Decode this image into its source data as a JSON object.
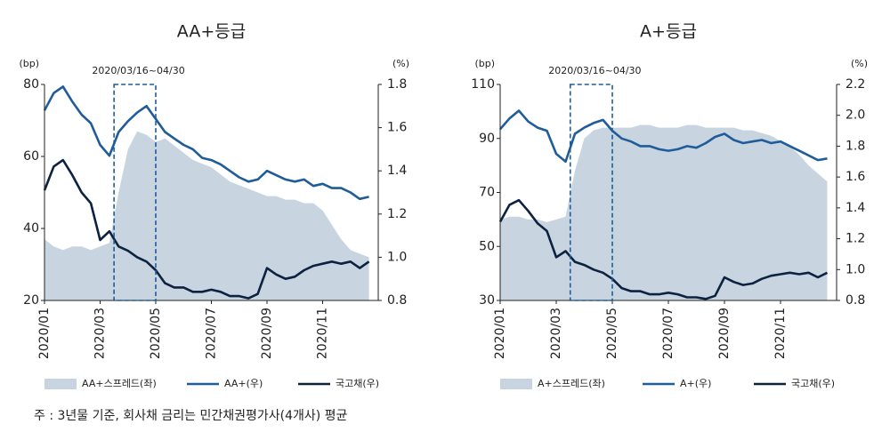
{
  "chart_data": [
    {
      "type": "line",
      "title": "AA+등급",
      "y_unit": "(bp)",
      "y2_unit": "(%)",
      "annotation": "2020/03/16~04/30",
      "categories": [
        "2020/01",
        null,
        null,
        null,
        null,
        null,
        "2020/03",
        null,
        null,
        null,
        null,
        null,
        "2020/05",
        null,
        null,
        null,
        null,
        null,
        "2020/07",
        null,
        null,
        null,
        null,
        null,
        "2020/09",
        null,
        null,
        null,
        null,
        null,
        "2020/11",
        null,
        null,
        null,
        null,
        null
      ],
      "ylim": [
        20,
        80
      ],
      "yticks": [
        20,
        40,
        60,
        80
      ],
      "y2lim": [
        0.8,
        1.8
      ],
      "y2ticks": [
        0.8,
        {
          "value": 1,
          "label": "1.0"
        },
        1.2,
        1.4,
        1.6,
        1.8
      ],
      "series": [
        {
          "name": "AA+스프레드(좌)",
          "kind": "area",
          "color": "#c8d5e1",
          "values": [
            37,
            35,
            34,
            35,
            35,
            34,
            35,
            36,
            50,
            62,
            67,
            66,
            64,
            65,
            63,
            61,
            59,
            58,
            57,
            55,
            53,
            52,
            51,
            50,
            49,
            49,
            48,
            48,
            47,
            47,
            45,
            41,
            37,
            34,
            33,
            32
          ]
        },
        {
          "name": "AA+(우)",
          "axis": "y2",
          "color": "#1f5c99",
          "values": [
            1.68,
            1.76,
            1.79,
            1.72,
            1.66,
            1.62,
            1.52,
            1.47,
            1.58,
            1.63,
            1.67,
            1.7,
            1.64,
            1.58,
            1.55,
            1.52,
            1.5,
            1.46,
            1.45,
            1.43,
            1.4,
            1.37,
            1.35,
            1.36,
            1.4,
            1.38,
            1.36,
            1.35,
            1.36,
            1.33,
            1.34,
            1.32,
            1.32,
            1.3,
            1.27,
            1.28
          ]
        },
        {
          "name": "국고채(우)",
          "axis": "y2",
          "color": "#0d2240",
          "values": [
            1.31,
            1.42,
            1.45,
            1.38,
            1.3,
            1.25,
            1.08,
            1.12,
            1.05,
            1.03,
            1.0,
            0.98,
            0.94,
            0.88,
            0.86,
            0.86,
            0.84,
            0.84,
            0.85,
            0.84,
            0.82,
            0.82,
            0.81,
            0.83,
            0.95,
            0.92,
            0.9,
            0.91,
            0.94,
            0.96,
            0.97,
            0.98,
            0.97,
            0.98,
            0.95,
            0.98
          ]
        }
      ]
    },
    {
      "type": "line",
      "title": "A+등급",
      "y_unit": "(bp)",
      "y2_unit": "(%)",
      "annotation": "2020/03/16~04/30",
      "categories": [
        "2020/01",
        null,
        null,
        null,
        null,
        null,
        "2020/03",
        null,
        null,
        null,
        null,
        null,
        "2020/05",
        null,
        null,
        null,
        null,
        null,
        "2020/07",
        null,
        null,
        null,
        null,
        null,
        "2020/09",
        null,
        null,
        null,
        null,
        null,
        "2020/11",
        null,
        null,
        null,
        null,
        null
      ],
      "ylim": [
        30,
        110
      ],
      "yticks": [
        30,
        50,
        70,
        90,
        110
      ],
      "y2lim": [
        0.8,
        2.2
      ],
      "y2ticks": [
        0.8,
        {
          "value": 1,
          "label": "1.0"
        },
        1.2,
        1.4,
        1.6,
        1.8,
        {
          "value": 2,
          "label": "2.0"
        },
        2.2
      ],
      "series": [
        {
          "name": "A+스프레드(좌)",
          "kind": "area",
          "color": "#c8d5e1",
          "values": [
            60,
            61,
            61,
            60,
            60,
            59,
            60,
            61,
            78,
            90,
            93,
            94,
            94,
            94,
            94,
            95,
            95,
            94,
            94,
            94,
            95,
            95,
            94,
            94,
            94,
            94,
            93,
            93,
            92,
            91,
            89,
            87,
            84,
            80,
            77,
            74
          ]
        },
        {
          "name": "A+(우)",
          "axis": "y2",
          "color": "#1f5c99",
          "values": [
            1.91,
            1.98,
            2.03,
            1.96,
            1.92,
            1.9,
            1.75,
            1.7,
            1.88,
            1.92,
            1.95,
            1.97,
            1.9,
            1.85,
            1.83,
            1.8,
            1.8,
            1.78,
            1.77,
            1.78,
            1.8,
            1.79,
            1.82,
            1.86,
            1.88,
            1.84,
            1.82,
            1.83,
            1.84,
            1.82,
            1.83,
            1.8,
            1.77,
            1.74,
            1.71,
            1.72
          ]
        },
        {
          "name": "국고채(우)",
          "axis": "y2",
          "color": "#0d2240",
          "values": [
            1.31,
            1.42,
            1.45,
            1.38,
            1.3,
            1.25,
            1.08,
            1.12,
            1.05,
            1.03,
            1.0,
            0.98,
            0.94,
            0.88,
            0.86,
            0.86,
            0.84,
            0.84,
            0.85,
            0.84,
            0.82,
            0.82,
            0.81,
            0.83,
            0.95,
            0.92,
            0.9,
            0.91,
            0.94,
            0.96,
            0.97,
            0.98,
            0.97,
            0.98,
            0.95,
            0.98
          ]
        }
      ]
    }
  ],
  "note": "주   : 3년물 기준, 회사채 금리는 민간채권평가사(4개사) 평균"
}
